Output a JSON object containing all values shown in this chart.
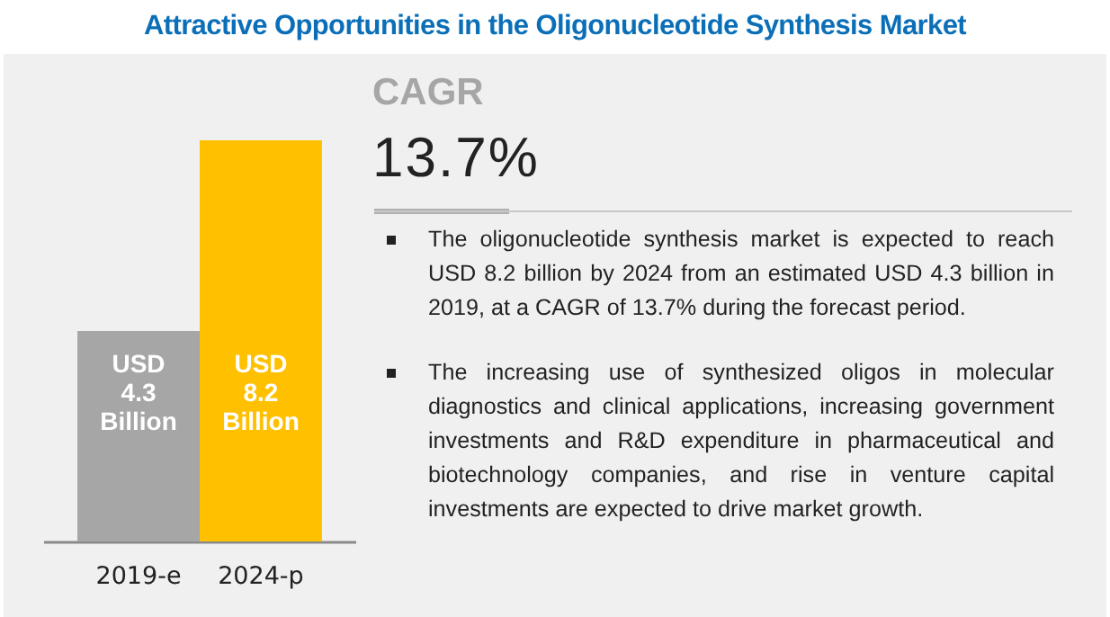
{
  "chart_data": {
    "type": "bar",
    "title": "Attractive Opportunities in the Oligonucleotide Synthesis Market",
    "categories": [
      "2019-e",
      "2024-p"
    ],
    "values": [
      4.3,
      8.2
    ],
    "colors": [
      "#a6a6a6",
      "#ffc000"
    ],
    "value_labels": [
      "USD 4.3 Billion",
      "USD 8.2 Billion"
    ],
    "annotations": [
      "CAGR",
      "13.7%",
      "The oligonucleotide synthesis market is expected to reach USD 8.2 billion by 2024 from an estimated USD 4.3 billion in 2019, at a CAGR of 13.7% during the forecast period.",
      "The increasing use of synthesized oligos in molecular diagnostics and clinical applications, increasing government investments and R&D expenditure in pharmaceutical and biotechnology companies, and rise in venture capital investments are expected to drive market growth."
    ]
  }
}
